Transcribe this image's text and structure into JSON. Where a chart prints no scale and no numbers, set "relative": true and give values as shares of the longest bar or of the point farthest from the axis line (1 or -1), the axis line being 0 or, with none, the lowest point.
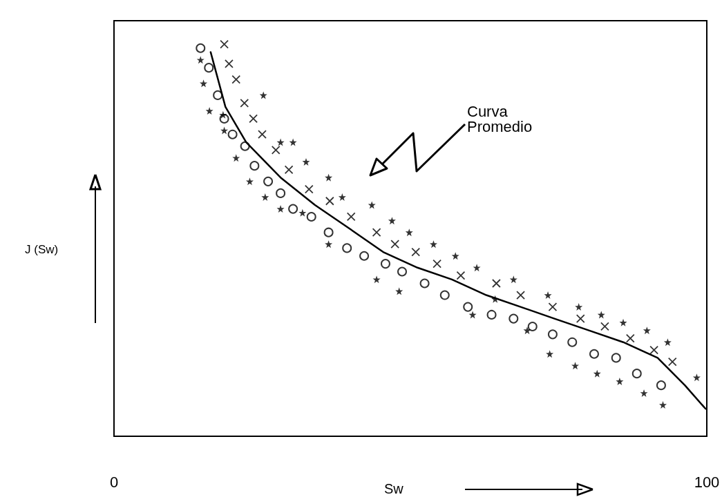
{
  "chart_data": {
    "type": "scatter",
    "relative": true,
    "xlabel": "Sw",
    "ylabel": "J (Sw)",
    "xlim": [
      0,
      100
    ],
    "xticks": [
      0,
      100
    ],
    "grid": false,
    "annotations": [
      "Curva Promedio"
    ],
    "series": [
      {
        "marker": "circle",
        "color": "#000000",
        "x": [
          14.6,
          16.0,
          17.5,
          18.6,
          20.0,
          22.1,
          23.7,
          26.0,
          28.1,
          30.2,
          33.3,
          36.2,
          39.3,
          42.2,
          45.8,
          48.6,
          52.4,
          55.8,
          59.7,
          63.7,
          67.4,
          70.6,
          74.0,
          77.3,
          81.0,
          84.7,
          88.2,
          92.3
        ],
        "values": [
          0.99,
          0.94,
          0.87,
          0.81,
          0.77,
          0.74,
          0.69,
          0.65,
          0.62,
          0.58,
          0.56,
          0.52,
          0.48,
          0.46,
          0.44,
          0.42,
          0.39,
          0.36,
          0.33,
          0.31,
          0.3,
          0.28,
          0.26,
          0.24,
          0.21,
          0.2,
          0.16,
          0.13
        ]
      },
      {
        "marker": "cross",
        "color": "#000000",
        "x": [
          18.6,
          19.4,
          20.6,
          22.0,
          23.5,
          25.0,
          27.3,
          29.5,
          32.9,
          36.4,
          40.0,
          44.3,
          47.4,
          50.9,
          54.5,
          58.5,
          64.5,
          68.6,
          74.0,
          78.7,
          82.8,
          87.1,
          91.1,
          94.2
        ],
        "values": [
          1.0,
          0.95,
          0.91,
          0.85,
          0.81,
          0.77,
          0.73,
          0.68,
          0.63,
          0.6,
          0.56,
          0.52,
          0.49,
          0.47,
          0.44,
          0.41,
          0.39,
          0.36,
          0.33,
          0.3,
          0.28,
          0.25,
          0.22,
          0.19
        ]
      },
      {
        "marker": "star",
        "color": "#000000",
        "x": [
          14.6,
          15.1,
          16.1,
          18.4,
          18.6,
          25.2,
          20.6,
          28.1,
          30.2,
          22.9,
          32.4,
          25.5,
          28.1,
          36.2,
          31.8,
          38.5,
          36.2,
          43.5,
          46.9,
          44.3,
          49.8,
          53.9,
          48.1,
          57.6,
          61.2,
          60.5,
          67.4,
          64.3,
          73.2,
          69.7,
          78.4,
          82.2,
          73.5,
          77.8,
          85.9,
          89.9,
          81.5,
          85.3,
          93.4,
          89.4,
          98.3,
          92.6
        ],
        "values": [
          0.96,
          0.9,
          0.83,
          0.82,
          0.78,
          0.87,
          0.71,
          0.75,
          0.75,
          0.65,
          0.7,
          0.61,
          0.58,
          0.66,
          0.57,
          0.61,
          0.49,
          0.59,
          0.55,
          0.4,
          0.52,
          0.49,
          0.37,
          0.46,
          0.43,
          0.31,
          0.4,
          0.35,
          0.36,
          0.27,
          0.33,
          0.31,
          0.21,
          0.18,
          0.29,
          0.27,
          0.16,
          0.14,
          0.24,
          0.11,
          0.15,
          0.08
        ]
      },
      {
        "type": "line",
        "marker": "none",
        "line_style": "solid",
        "color": "#000000",
        "x": [
          16.3,
          18.8,
          22.3,
          28.1,
          33.9,
          39.7,
          45.4,
          51.2,
          57.0,
          62.8,
          68.6,
          74.3,
          80.1,
          85.9,
          91.7,
          96.3,
          99.8
        ],
        "values": [
          0.98,
          0.84,
          0.75,
          0.66,
          0.59,
          0.53,
          0.47,
          0.43,
          0.4,
          0.36,
          0.33,
          0.3,
          0.27,
          0.24,
          0.2,
          0.13,
          0.07
        ]
      }
    ]
  }
}
